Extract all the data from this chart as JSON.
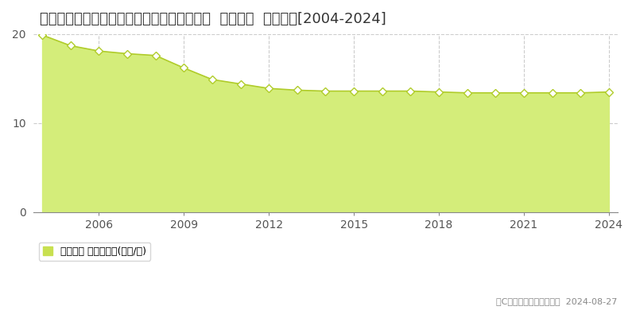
{
  "title": "埼玉県さいたま市見沼区染谷１丁目２５０番  地価公示  地価推移[2004-2024]",
  "years": [
    2004,
    2005,
    2006,
    2007,
    2008,
    2009,
    2010,
    2011,
    2012,
    2013,
    2014,
    2015,
    2016,
    2017,
    2018,
    2019,
    2020,
    2021,
    2022,
    2023,
    2024
  ],
  "values": [
    19.9,
    18.7,
    18.1,
    17.8,
    17.6,
    16.2,
    14.9,
    14.4,
    13.9,
    13.7,
    13.6,
    13.6,
    13.6,
    13.6,
    13.5,
    13.4,
    13.4,
    13.4,
    13.4,
    13.4,
    13.5
  ],
  "ylim": [
    0,
    20
  ],
  "yticks": [
    0,
    10,
    20
  ],
  "xticks": [
    2006,
    2009,
    2012,
    2015,
    2018,
    2021,
    2024
  ],
  "fill_color": "#d4ed7a",
  "line_color": "#b0cc2a",
  "marker_color": "#ffffff",
  "marker_edge_color": "#b0cc2a",
  "grid_color": "#cccccc",
  "background_color": "#ffffff",
  "legend_label": "地価公示 平均坪単価(万円/坪)",
  "legend_marker_color": "#c8e050",
  "copyright_text": "（C）土地価格ドットコム  2024-08-27",
  "title_fontsize": 13,
  "axis_fontsize": 10
}
